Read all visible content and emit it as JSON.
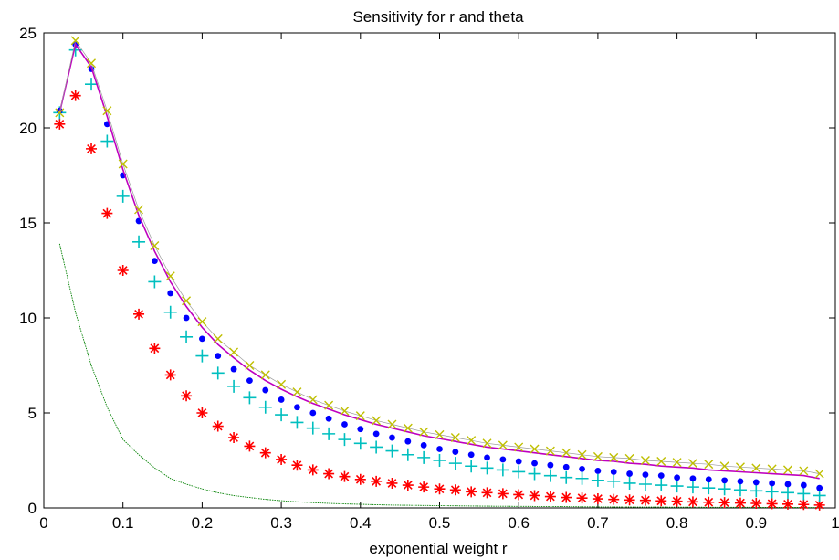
{
  "chart_data": {
    "type": "line",
    "title": "Sensitivity for r and theta",
    "xlabel": "exponential weight r",
    "ylabel": "",
    "xlim": [
      0,
      1
    ],
    "ylim": [
      0,
      25
    ],
    "grid": false,
    "legend": "none",
    "x_ticks": [
      "0",
      "0.1",
      "0.2",
      "0.3",
      "0.4",
      "0.5",
      "0.6",
      "0.7",
      "0.8",
      "0.9",
      "1"
    ],
    "y_ticks": [
      "0",
      "5",
      "10",
      "15",
      "20",
      "25"
    ],
    "x": [
      0.02,
      0.04,
      0.06,
      0.08,
      0.1,
      0.12,
      0.14,
      0.16,
      0.18,
      0.2,
      0.22,
      0.24,
      0.26,
      0.28,
      0.3,
      0.32,
      0.34,
      0.36,
      0.38,
      0.4,
      0.42,
      0.44,
      0.46,
      0.48,
      0.5,
      0.52,
      0.54,
      0.56,
      0.58,
      0.6,
      0.62,
      0.64,
      0.66,
      0.68,
      0.7,
      0.72,
      0.74,
      0.76,
      0.78,
      0.8,
      0.82,
      0.84,
      0.86,
      0.88,
      0.9,
      0.92,
      0.94,
      0.96,
      0.98
    ],
    "series": [
      {
        "style": "x-marker",
        "color": "#bfbf00",
        "values": [
          20.8,
          24.6,
          23.4,
          20.9,
          18.1,
          15.7,
          13.8,
          12.2,
          10.9,
          9.8,
          8.9,
          8.2,
          7.5,
          7.0,
          6.5,
          6.1,
          5.7,
          5.4,
          5.1,
          4.85,
          4.6,
          4.4,
          4.2,
          4.0,
          3.85,
          3.7,
          3.55,
          3.4,
          3.3,
          3.2,
          3.1,
          3.0,
          2.9,
          2.8,
          2.7,
          2.65,
          2.6,
          2.5,
          2.45,
          2.4,
          2.35,
          2.3,
          2.2,
          2.15,
          2.1,
          2.05,
          2.0,
          1.95,
          1.8
        ]
      },
      {
        "style": "line",
        "color": "#bf00bf",
        "values": [
          20.8,
          24.4,
          23.2,
          20.6,
          17.8,
          15.4,
          13.5,
          11.9,
          10.6,
          9.5,
          8.6,
          7.9,
          7.25,
          6.7,
          6.25,
          5.85,
          5.5,
          5.2,
          4.9,
          4.65,
          4.4,
          4.2,
          4.0,
          3.8,
          3.65,
          3.5,
          3.35,
          3.2,
          3.1,
          3.0,
          2.9,
          2.8,
          2.7,
          2.6,
          2.5,
          2.45,
          2.35,
          2.3,
          2.2,
          2.15,
          2.1,
          2.0,
          1.95,
          1.9,
          1.85,
          1.8,
          1.75,
          1.7,
          1.55
        ]
      },
      {
        "style": "dot-marker",
        "color": "#0000ff",
        "values": [
          20.9,
          24.4,
          23.1,
          20.2,
          17.5,
          15.1,
          13.0,
          11.3,
          10.0,
          8.9,
          8.0,
          7.3,
          6.7,
          6.2,
          5.7,
          5.3,
          5.0,
          4.7,
          4.4,
          4.15,
          3.9,
          3.7,
          3.5,
          3.3,
          3.1,
          2.95,
          2.8,
          2.65,
          2.55,
          2.45,
          2.35,
          2.25,
          2.15,
          2.05,
          1.95,
          1.9,
          1.8,
          1.75,
          1.7,
          1.6,
          1.55,
          1.5,
          1.45,
          1.4,
          1.35,
          1.3,
          1.25,
          1.2,
          1.05
        ]
      },
      {
        "style": "plus-marker",
        "color": "#00bfbf",
        "values": [
          20.8,
          24.1,
          22.3,
          19.3,
          16.4,
          14.0,
          11.9,
          10.3,
          9.0,
          8.0,
          7.1,
          6.4,
          5.8,
          5.3,
          4.9,
          4.5,
          4.2,
          3.9,
          3.6,
          3.4,
          3.2,
          3.0,
          2.8,
          2.65,
          2.5,
          2.35,
          2.2,
          2.1,
          2.0,
          1.9,
          1.8,
          1.7,
          1.6,
          1.55,
          1.45,
          1.4,
          1.3,
          1.25,
          1.2,
          1.15,
          1.1,
          1.05,
          1.0,
          0.95,
          0.9,
          0.85,
          0.8,
          0.75,
          0.65
        ]
      },
      {
        "style": "star-marker",
        "color": "#ff0000",
        "values": [
          20.2,
          21.7,
          18.9,
          15.5,
          12.5,
          10.2,
          8.4,
          7.0,
          5.9,
          5.0,
          4.3,
          3.7,
          3.25,
          2.9,
          2.55,
          2.25,
          2.0,
          1.8,
          1.65,
          1.5,
          1.4,
          1.3,
          1.2,
          1.1,
          1.0,
          0.95,
          0.85,
          0.8,
          0.75,
          0.7,
          0.65,
          0.6,
          0.55,
          0.52,
          0.48,
          0.45,
          0.42,
          0.4,
          0.37,
          0.35,
          0.32,
          0.3,
          0.28,
          0.26,
          0.24,
          0.22,
          0.2,
          0.18,
          0.15
        ]
      },
      {
        "style": "thin-line",
        "color": "#008000",
        "values": [
          13.9,
          10.3,
          7.5,
          5.3,
          3.6,
          2.8,
          2.1,
          1.55,
          1.25,
          1.0,
          0.8,
          0.65,
          0.55,
          0.45,
          0.38,
          0.32,
          0.28,
          0.24,
          0.21,
          0.19,
          0.17,
          0.15,
          0.14,
          0.13,
          0.12,
          0.11,
          0.1,
          0.09,
          0.085,
          0.08,
          0.075,
          0.07,
          0.065,
          0.06,
          0.055,
          0.05,
          0.048,
          0.045,
          0.042,
          0.04,
          0.038,
          0.036,
          0.034,
          0.032,
          0.03,
          0.028,
          0.026,
          0.024,
          0.02
        ]
      }
    ]
  }
}
